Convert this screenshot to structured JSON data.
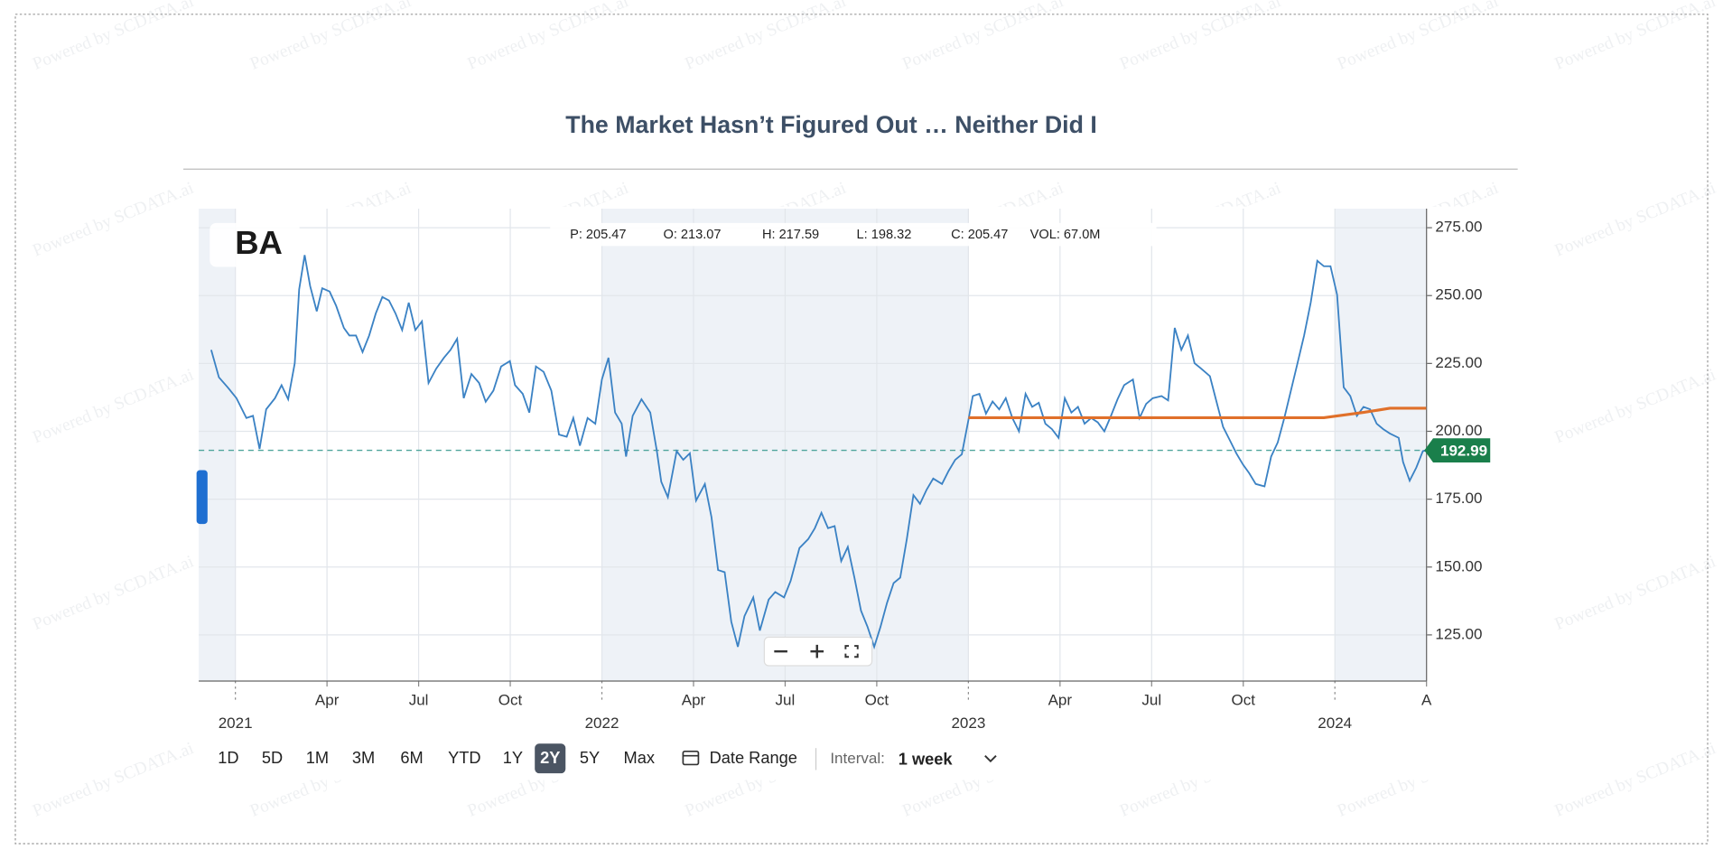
{
  "watermark": "Powered by SCDATA.ai",
  "chart_data": {
    "type": "line",
    "title": "The Market Hasn’t Figured Out … Neither Did I",
    "ticker": "BA",
    "info": [
      "P: 205.47",
      "O: 213.07",
      "H: 217.59",
      "L: 198.32",
      "C: 205.47",
      "VOL: 67.0M"
    ],
    "range_buttons": [
      "1D",
      "5D",
      "1M",
      "3M",
      "6M",
      "YTD",
      "1Y",
      "2Y",
      "5Y",
      "Max"
    ],
    "active_range": "2Y",
    "date_range": "Date Range",
    "interval_label": "Interval:",
    "interval_value": "1 week",
    "last_price": 192.99,
    "xlim": [
      2020.9,
      2024.25
    ],
    "ylim": [
      108,
      282
    ],
    "xticks": [
      {
        "value": 2021,
        "label": "2021"
      },
      {
        "value": 2021.25,
        "label": "Apr"
      },
      {
        "value": 2021.5,
        "label": "Jul"
      },
      {
        "value": 2021.75,
        "label": "Oct"
      },
      {
        "value": 2022,
        "label": "2022"
      },
      {
        "value": 2022.25,
        "label": "Apr"
      },
      {
        "value": 2022.5,
        "label": "Jul"
      },
      {
        "value": 2022.75,
        "label": "Oct"
      },
      {
        "value": 2023,
        "label": "2023"
      },
      {
        "value": 2023.25,
        "label": "Apr"
      },
      {
        "value": 2023.5,
        "label": "Jul"
      },
      {
        "value": 2023.75,
        "label": "Oct"
      },
      {
        "value": 2024,
        "label": "2024"
      },
      {
        "value": 2024.25,
        "label": "A"
      }
    ],
    "yticks": [
      {
        "value": 125,
        "label": "125.00"
      },
      {
        "value": 150,
        "label": "150.00"
      },
      {
        "value": 175,
        "label": "175.00"
      },
      {
        "value": 200,
        "label": "200.00"
      },
      {
        "value": 225,
        "label": "225.00"
      },
      {
        "value": 250,
        "label": "250.00"
      },
      {
        "value": 275,
        "label": "275.00"
      }
    ],
    "grid": true,
    "series": [
      {
        "color": "#3b82c4",
        "x": [
          2020.934,
          2020.955,
          2020.979,
          2021.003,
          2021.03,
          2021.048,
          2021.066,
          2021.084,
          2021.108,
          2021.126,
          2021.144,
          2021.162,
          2021.174,
          2021.189,
          2021.204,
          2021.222,
          2021.237,
          2021.257,
          2021.275,
          2021.296,
          2021.311,
          2021.329,
          2021.347,
          2021.365,
          2021.383,
          2021.401,
          2021.419,
          2021.437,
          2021.455,
          2021.473,
          2021.491,
          2021.509,
          2021.527,
          2021.548,
          2021.569,
          2021.587,
          2021.605,
          2021.623,
          2021.644,
          2021.665,
          2021.683,
          2021.704,
          2021.725,
          2021.749,
          2021.763,
          2021.784,
          2021.802,
          2021.82,
          2021.841,
          2021.862,
          2021.883,
          2021.904,
          2021.922,
          2021.94,
          2021.961,
          2021.982,
          2022.0,
          2022.018,
          2022.036,
          2022.054,
          2022.066,
          2022.084,
          2022.108,
          2022.132,
          2022.15,
          2022.162,
          2022.18,
          2022.204,
          2022.222,
          2022.24,
          2022.257,
          2022.281,
          2022.299,
          2022.317,
          2022.335,
          2022.353,
          2022.371,
          2022.389,
          2022.413,
          2022.431,
          2022.455,
          2022.473,
          2022.497,
          2022.515,
          2022.539,
          2022.563,
          2022.581,
          2022.599,
          2022.617,
          2022.635,
          2022.653,
          2022.671,
          2022.689,
          2022.707,
          2022.725,
          2022.743,
          2022.76,
          2022.778,
          2022.796,
          2022.814,
          2022.832,
          2022.85,
          2022.868,
          2022.886,
          2022.904,
          2022.928,
          2022.946,
          2022.964,
          2022.982,
          2023.0,
          2023.012,
          2023.03,
          2023.048,
          2023.066,
          2023.084,
          2023.102,
          2023.12,
          2023.138,
          2023.156,
          2023.174,
          2023.192,
          2023.21,
          2023.228,
          2023.246,
          2023.263,
          2023.281,
          2023.299,
          2023.317,
          2023.335,
          2023.353,
          2023.371,
          2023.389,
          2023.407,
          2023.425,
          2023.449,
          2023.467,
          2023.485,
          2023.503,
          2023.527,
          2023.545,
          2023.563,
          2023.581,
          2023.599,
          2023.617,
          2023.635,
          2023.659,
          2023.677,
          2023.695,
          2023.713,
          2023.731,
          2023.749,
          2023.766,
          2023.784,
          2023.808,
          2023.826,
          2023.844,
          2023.862,
          2023.88,
          2023.898,
          2023.916,
          2023.934,
          2023.952,
          2023.97,
          2023.988,
          2024.006,
          2024.024,
          2024.042,
          2024.06,
          2024.078,
          2024.096,
          2024.114,
          2024.132,
          2024.15,
          2024.174,
          2024.186,
          2024.204,
          2024.222,
          2024.24,
          2024.249
        ],
        "values": [
          230.0,
          219.9,
          216.2,
          212.2,
          204.9,
          205.7,
          193.5,
          208.1,
          212.2,
          217.0,
          211.8,
          225.1,
          252.3,
          264.9,
          253.5,
          244.2,
          252.7,
          251.5,
          246.2,
          238.1,
          235.3,
          235.3,
          229.2,
          235.3,
          243.4,
          249.5,
          248.2,
          243.4,
          237.3,
          247.4,
          237.3,
          240.5,
          217.8,
          223.1,
          227.1,
          230.0,
          234.1,
          212.2,
          221.1,
          217.8,
          210.9,
          215.0,
          223.9,
          225.9,
          217.0,
          213.8,
          206.9,
          223.9,
          221.9,
          215.0,
          198.8,
          198.0,
          204.9,
          194.7,
          204.9,
          202.8,
          219.1,
          227.1,
          206.9,
          202.8,
          190.7,
          205.7,
          211.8,
          206.9,
          192.7,
          181.4,
          175.7,
          192.7,
          189.5,
          191.9,
          174.5,
          180.6,
          168.4,
          148.9,
          148.1,
          129.9,
          120.6,
          131.9,
          138.8,
          126.6,
          138.0,
          140.8,
          138.8,
          144.9,
          157.0,
          160.3,
          164.3,
          170.0,
          164.3,
          165.1,
          152.2,
          157.4,
          146.1,
          133.9,
          127.9,
          120.6,
          127.9,
          136.8,
          144.1,
          146.1,
          160.3,
          176.5,
          173.3,
          178.5,
          182.6,
          180.6,
          185.4,
          189.5,
          191.5,
          204.1,
          213.0,
          213.8,
          206.5,
          211.0,
          208.1,
          212.2,
          204.9,
          200.0,
          213.8,
          209.0,
          210.5,
          202.8,
          200.8,
          197.6,
          212.2,
          206.9,
          209.0,
          202.8,
          204.9,
          203.3,
          200.0,
          205.7,
          211.8,
          217.0,
          219.1,
          204.9,
          210.1,
          212.2,
          213.0,
          211.4,
          238.1,
          230.0,
          235.3,
          225.1,
          223.1,
          220.3,
          210.9,
          201.6,
          196.8,
          191.9,
          187.8,
          184.6,
          180.6,
          179.7,
          190.7,
          195.9,
          204.9,
          215.0,
          225.1,
          235.3,
          247.4,
          262.8,
          260.8,
          260.8,
          250.3,
          216.2,
          213.0,
          205.7,
          209.0,
          208.1,
          202.8,
          200.8,
          199.2,
          197.6,
          188.7,
          181.8,
          186.6,
          192.7,
          192.99
        ]
      },
      {
        "color": "#e0702a",
        "x": [
          2023.0,
          2023.97,
          2024.08,
          2024.15,
          2024.249
        ],
        "values": [
          205,
          205,
          207,
          208.5,
          208.5
        ]
      }
    ]
  }
}
